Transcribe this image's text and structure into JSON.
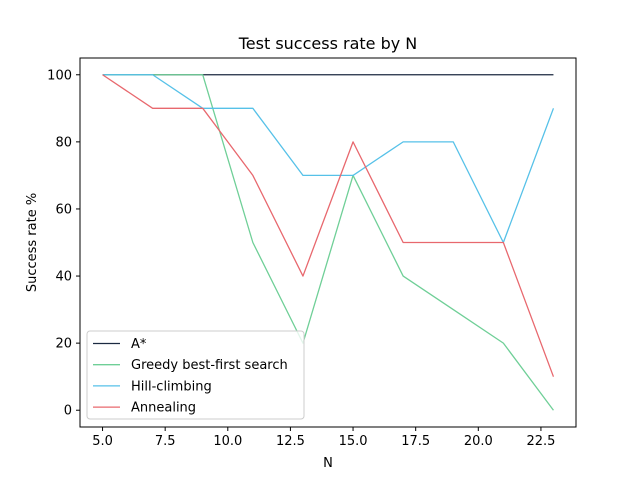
{
  "chart_data": {
    "type": "line",
    "title": "Test success rate by N",
    "xlabel": "N",
    "ylabel": "Success rate %",
    "xlim": [
      4.1,
      23.9
    ],
    "ylim": [
      -5,
      105
    ],
    "xticks": [
      5.0,
      7.5,
      10.0,
      12.5,
      15.0,
      17.5,
      20.0,
      22.5
    ],
    "xtick_labels": [
      "5.0",
      "7.5",
      "10.0",
      "12.5",
      "15.0",
      "17.5",
      "20.0",
      "22.5"
    ],
    "yticks": [
      0,
      20,
      40,
      60,
      80,
      100
    ],
    "ytick_labels": [
      "0",
      "20",
      "40",
      "60",
      "80",
      "100"
    ],
    "grid": false,
    "legend_position": "bottom-left",
    "x": [
      5,
      7,
      9,
      11,
      13,
      15,
      17,
      19,
      21,
      23
    ],
    "series": [
      {
        "name": "A*",
        "color": "#1b2a41",
        "values": [
          100,
          100,
          100,
          100,
          100,
          100,
          100,
          100,
          100,
          100
        ]
      },
      {
        "name": "Greedy best-first search",
        "color": "#6fcf97",
        "values": [
          100,
          100,
          100,
          50,
          20,
          70,
          40,
          30,
          20,
          0
        ]
      },
      {
        "name": "Hill-climbing",
        "color": "#56c1e8",
        "values": [
          100,
          100,
          90,
          90,
          70,
          70,
          80,
          80,
          50,
          90
        ]
      },
      {
        "name": "Annealing",
        "color": "#e8686e",
        "values": [
          100,
          90,
          90,
          70,
          40,
          80,
          50,
          50,
          50,
          10
        ]
      }
    ]
  }
}
